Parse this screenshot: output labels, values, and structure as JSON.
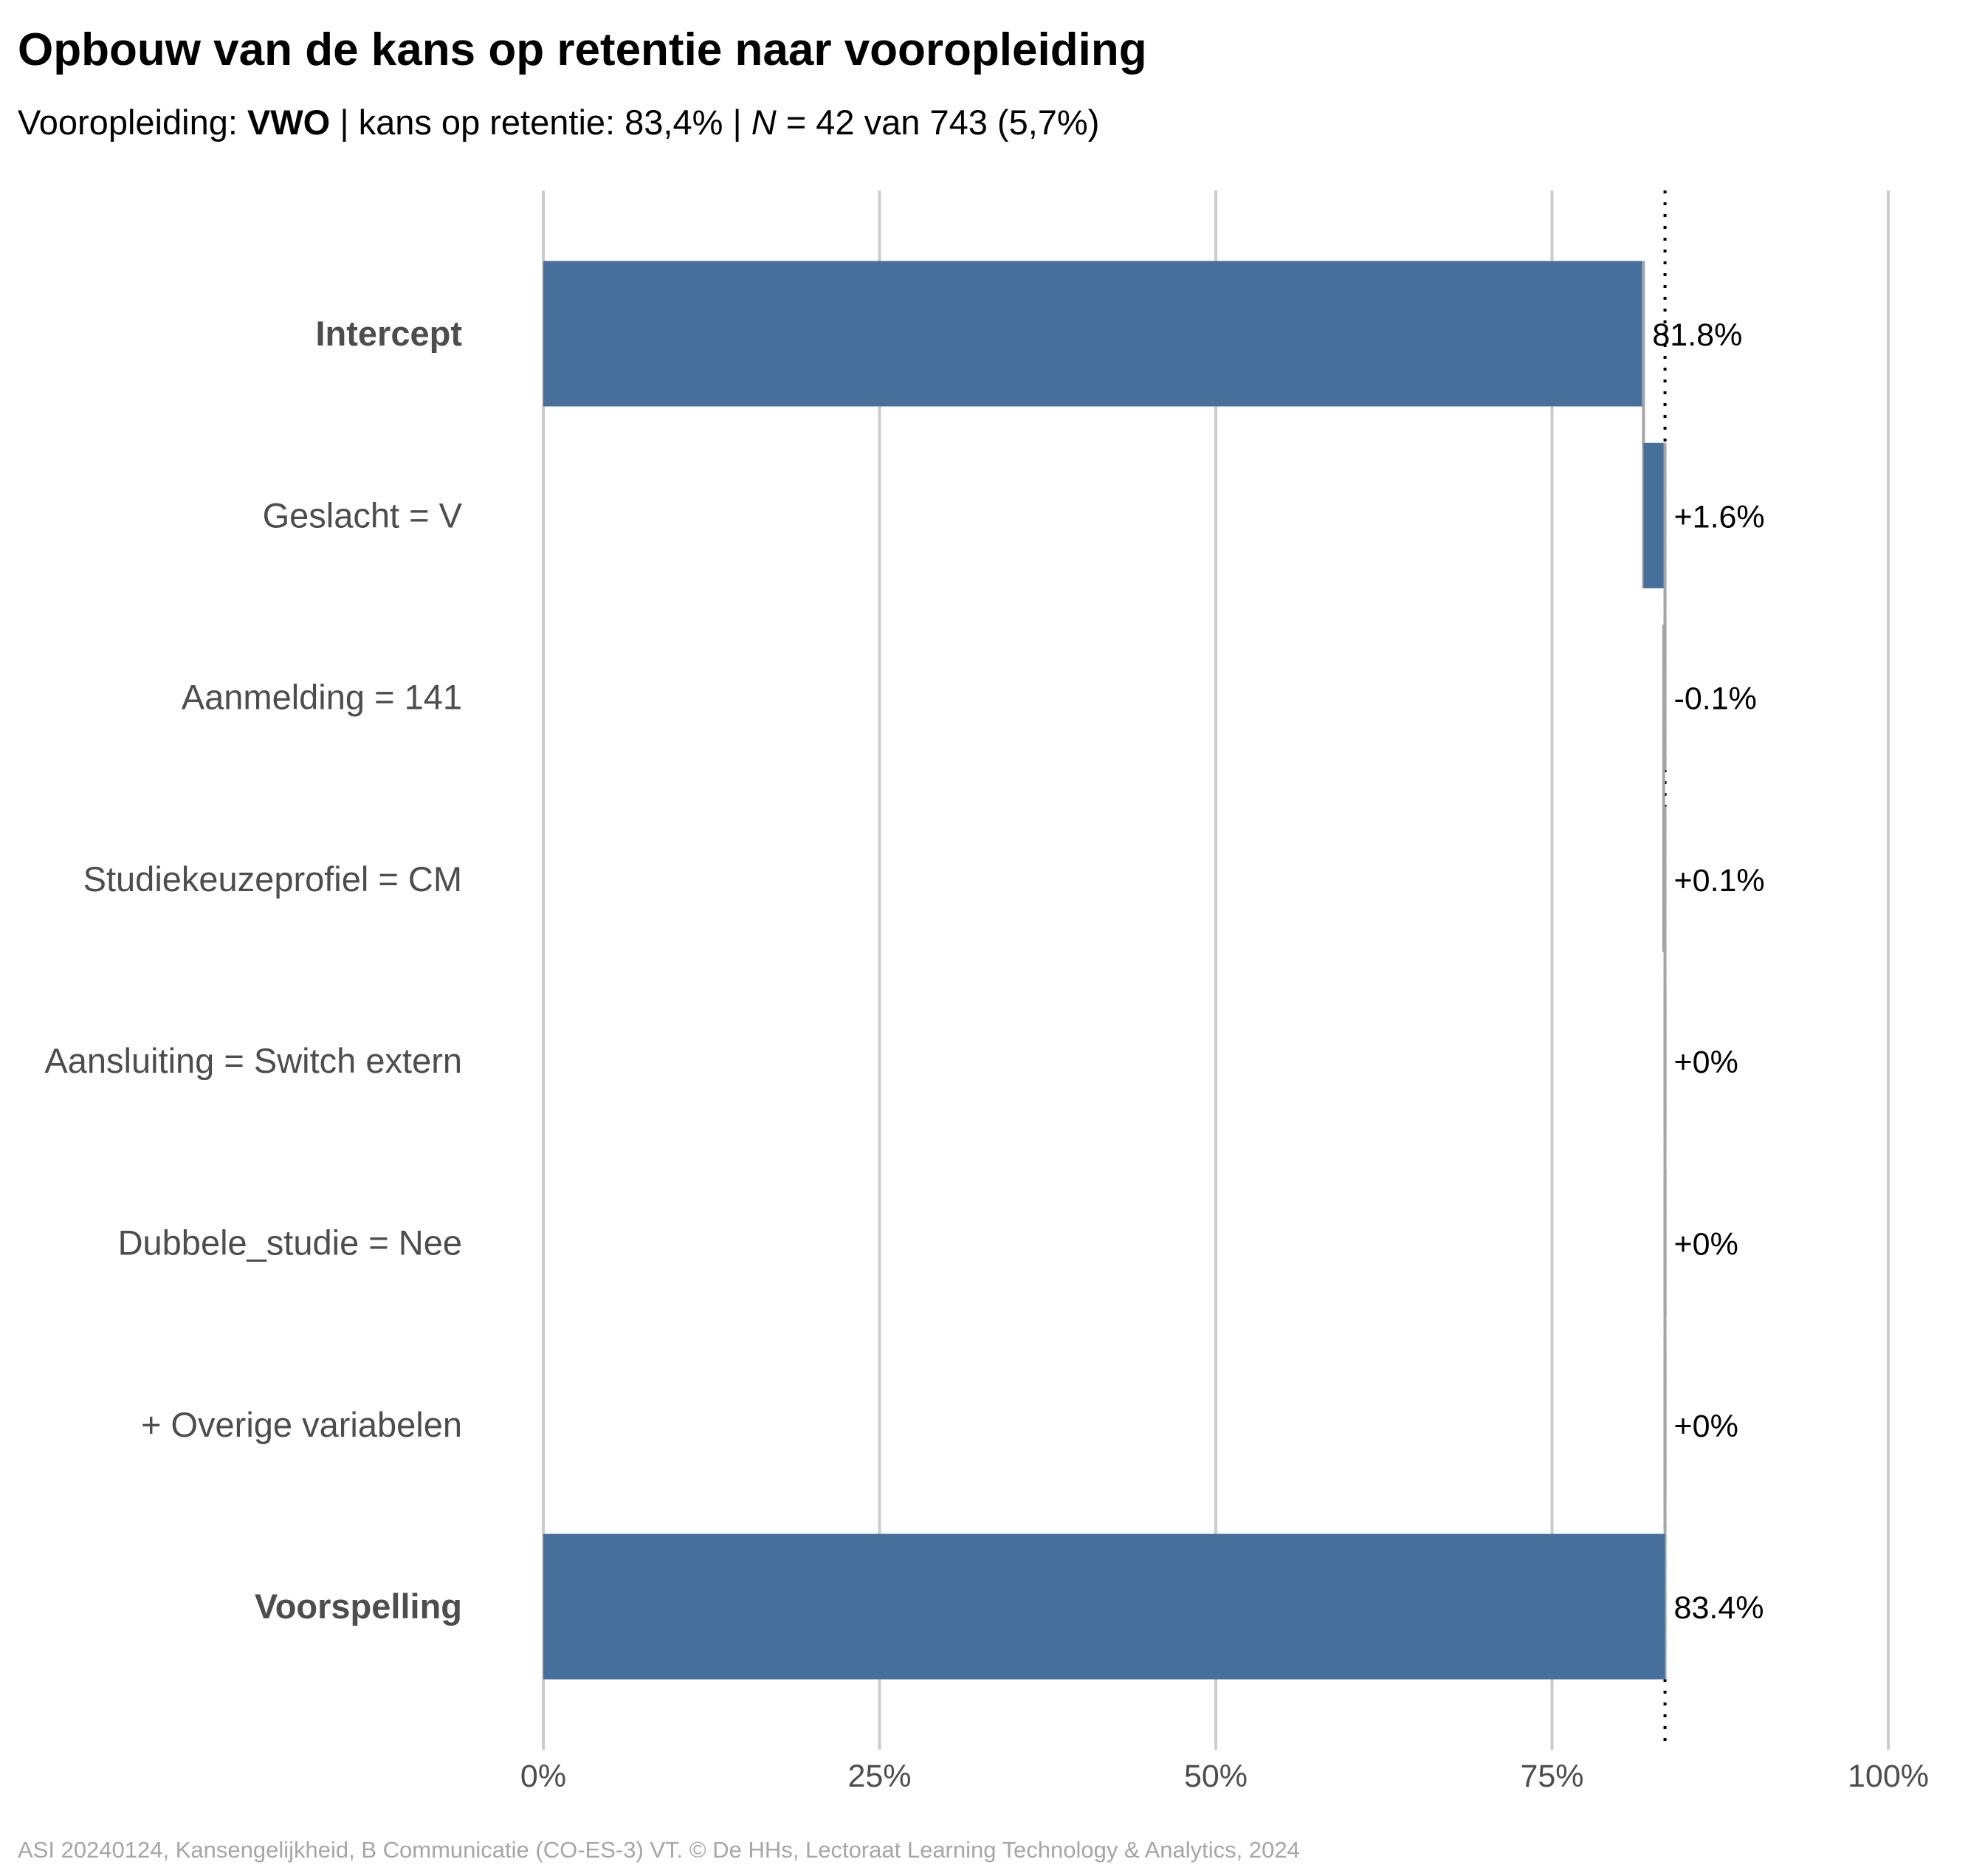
{
  "title": "Opbouw van de kans op retentie naar vooropleiding",
  "subtitle": {
    "label": "Vooropleiding:",
    "group": "VWO",
    "sep1": "|",
    "kans": "kans op retentie: 83,4%",
    "sep2": "|",
    "n_symbol": "N",
    "n_text": "= 42 van 743 (5,7%)"
  },
  "caption": "ASI 20240124, Kansengelijkheid, B Communicatie (CO-ES-3) VT. © De HHs, Lectoraat Learning Technology & Analytics, 2024",
  "colors": {
    "bar": "#476f9c",
    "grid": "#cccccc",
    "label": "#4d4d4d",
    "value": "#000000",
    "connector": "#a6a6a6"
  },
  "chart_data": {
    "type": "bar",
    "orientation": "horizontal-waterfall",
    "xlim": [
      0,
      100
    ],
    "xticks": [
      "0%",
      "25%",
      "50%",
      "75%",
      "100%"
    ],
    "xtick_values": [
      0,
      25,
      50,
      75,
      100
    ],
    "reference_line": 83.4,
    "grid": true,
    "categories": [
      "Intercept",
      "Geslacht = V",
      "Aanmelding = 141",
      "Studiekeuzeprofiel = CM",
      "Aansluiting = Switch extern",
      "Dubbele_studie = Nee",
      "+ Overige variabelen",
      "Voorspelling"
    ],
    "bold": [
      true,
      false,
      false,
      false,
      false,
      false,
      false,
      true
    ],
    "start": [
      0,
      81.8,
      83.4,
      83.3,
      83.4,
      83.4,
      83.4,
      0
    ],
    "end": [
      81.8,
      83.4,
      83.3,
      83.4,
      83.4,
      83.4,
      83.4,
      83.4
    ],
    "labels": [
      "81.8%",
      "+1.6%",
      "-0.1%",
      "+0.1%",
      "+0%",
      "+0%",
      "+0%",
      "83.4%"
    ]
  }
}
